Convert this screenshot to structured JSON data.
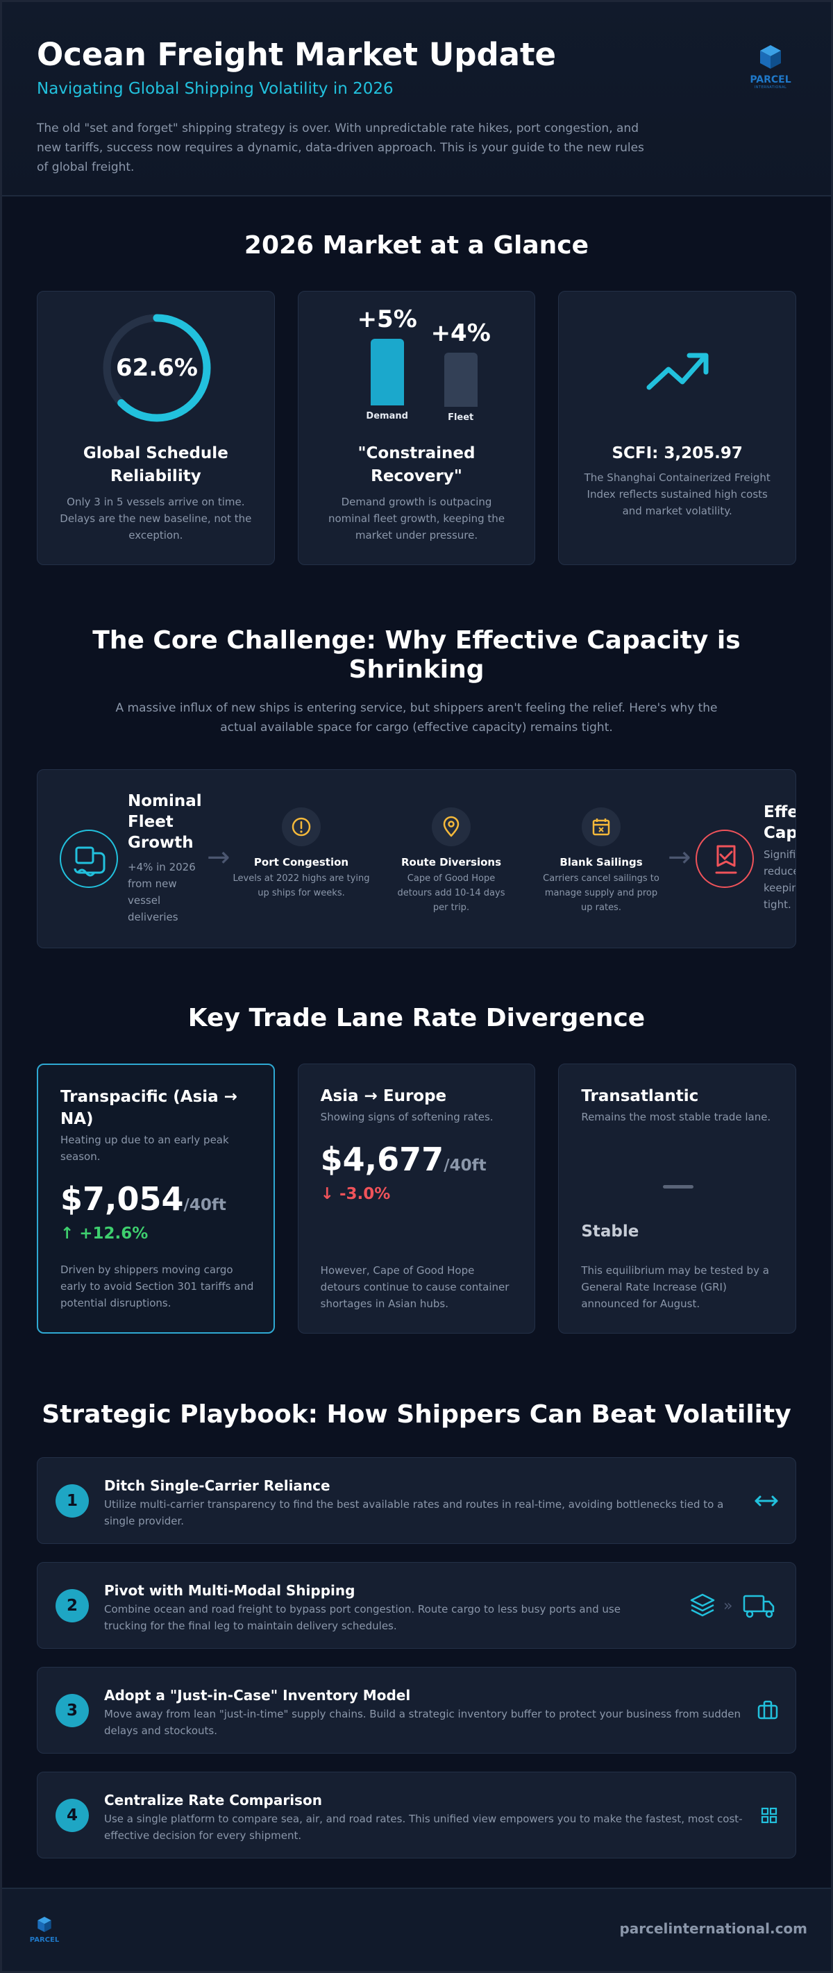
{
  "header": {
    "title": "Ocean Freight Market Update",
    "subtitle": "Navigating Global Shipping Volatility in 2026",
    "intro": "The old \"set and forget\" shipping strategy is over. With unpredictable rate hikes, port congestion, and new tariffs, success now requires a dynamic, data-driven approach. This is your guide to the new rules of global freight.",
    "logo_text": "PARCEL",
    "logo_subtext": "INTERNATIONAL"
  },
  "glance": {
    "title": "2026 Market at a Glance",
    "reliability": {
      "value": "62.6%",
      "fraction": 0.626,
      "title": "Global Schedule Reliability",
      "desc": "Only 3 in 5 vessels arrive on time. Delays are the new baseline, not the exception."
    },
    "recovery": {
      "demand_value": "+5%",
      "demand_label": "Demand",
      "fleet_value": "+4%",
      "fleet_label": "Fleet",
      "title": "\"Constrained Recovery\"",
      "desc": "Demand growth is outpacing nominal fleet growth, keeping the market under pressure."
    },
    "scfi": {
      "icon": "trending-up-icon",
      "title": "SCFI: 3,205.97",
      "desc": "The Shanghai Containerized Freight Index reflects sustained high costs and market volatility."
    }
  },
  "challenge": {
    "title": "The Core Challenge: Why Effective Capacity is Shrinking",
    "subtitle": "A massive influx of new ships is entering service, but shippers aren't feeling the relief. Here's why the actual available space for cargo (effective capacity) remains tight.",
    "start": {
      "title": "Nominal Fleet Growth",
      "desc": "+4% in 2026 from new vessel deliveries"
    },
    "factors": [
      {
        "icon": "alert-icon",
        "title": "Port Congestion",
        "desc": "Levels at 2022 highs are tying up ships for weeks."
      },
      {
        "icon": "map-pin-icon",
        "title": "Route Diversions",
        "desc": "Cape of Good Hope detours add 10-14 days per trip."
      },
      {
        "icon": "calendar-x-icon",
        "title": "Blank Sailings",
        "desc": "Carriers cancel sailings to manage supply and prop up rates."
      }
    ],
    "end": {
      "title": "Effective Capacity",
      "desc": "Significantly reduced, keeping space tight."
    }
  },
  "lanes": {
    "title": "Key Trade Lane Rate Divergence",
    "items": [
      {
        "title": "Transpacific (Asia → NA)",
        "subtitle": "Heating up due to an early peak season.",
        "price": "$7,054",
        "unit": "/40ft",
        "change": "↑ +12.6%",
        "note": "Driven by shippers moving cargo early to avoid Section 301 tariffs and potential disruptions."
      },
      {
        "title": "Asia → Europe",
        "subtitle": "Showing signs of softening rates.",
        "price": "$4,677",
        "unit": "/40ft",
        "change": "↓ -3.0%",
        "note": "However, Cape of Good Hope detours continue to cause container shortages in Asian hubs."
      },
      {
        "title": "Transatlantic",
        "subtitle": "Remains the most stable trade lane.",
        "status": "Stable",
        "note": "This equilibrium may be tested by a General Rate Increase (GRI) announced for August."
      }
    ]
  },
  "playbook": {
    "title": "Strategic Playbook: How Shippers Can Beat Volatility",
    "items": [
      {
        "num": "1",
        "title": "Ditch Single-Carrier Reliance",
        "desc": "Utilize multi-carrier transparency to find the best available rates and routes in real-time, avoiding bottlenecks tied to a single provider.",
        "icon": "arrows-horizontal-icon"
      },
      {
        "num": "2",
        "title": "Pivot with Multi-Modal Shipping",
        "desc": "Combine ocean and road freight to bypass port congestion. Route cargo to less busy ports and use trucking for the final leg to maintain delivery schedules.",
        "icon": "layers-truck-icon"
      },
      {
        "num": "3",
        "title": "Adopt a \"Just-in-Case\" Inventory Model",
        "desc": "Move away from lean \"just-in-time\" supply chains. Build a strategic inventory buffer to protect your business from sudden delays and stockouts.",
        "icon": "briefcase-icon"
      },
      {
        "num": "4",
        "title": "Centralize Rate Comparison",
        "desc": "Use a single platform to compare sea, air, and road rates. This unified view empowers you to make the fastest, most cost-effective decision for every shipment.",
        "icon": "grid-icon"
      }
    ]
  },
  "footer": {
    "logo_text": "PARCEL",
    "website": "parcelinternational.com"
  },
  "colors": {
    "accent": "#22c1dd",
    "positive": "#3ecf6e",
    "negative": "#f0535a",
    "warning": "#f5b93a",
    "background": "#0b1120",
    "card": "#161f31"
  }
}
